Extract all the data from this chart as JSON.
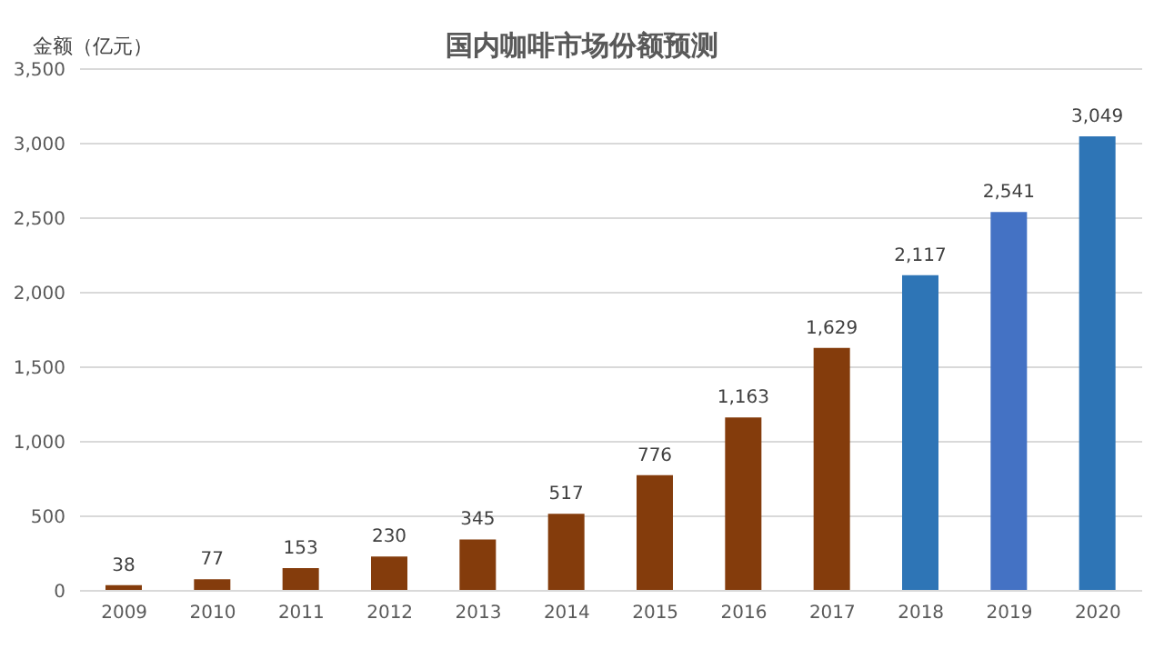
{
  "chart_data": {
    "type": "bar",
    "title": "国内咖啡市场份额预测",
    "ylabel": "金额（亿元）",
    "categories": [
      "2009",
      "2010",
      "2011",
      "2012",
      "2013",
      "2014",
      "2015",
      "2016",
      "2017",
      "2018",
      "2019",
      "2020"
    ],
    "values": [
      38,
      77,
      153,
      230,
      345,
      517,
      776,
      1163,
      1629,
      2117,
      2541,
      3049
    ],
    "colors": [
      "#843c0c",
      "#843c0c",
      "#843c0c",
      "#843c0c",
      "#843c0c",
      "#843c0c",
      "#843c0c",
      "#843c0c",
      "#843c0c",
      "#2e75b6",
      "#4472c4",
      "#2e75b6"
    ],
    "value_labels": [
      "38",
      "77",
      "153",
      "230",
      "345",
      "517",
      "776",
      "1,163",
      "1,629",
      "2,117",
      "2,541",
      "3,049"
    ],
    "ylim": [
      0,
      3500
    ],
    "yticks": [
      {
        "value": 0,
        "label": "0"
      },
      {
        "value": 500,
        "label": "500"
      },
      {
        "value": 1000,
        "label": "1,000"
      },
      {
        "value": 1500,
        "label": "1,500"
      },
      {
        "value": 2000,
        "label": "2,000"
      },
      {
        "value": 2500,
        "label": "2,500"
      },
      {
        "value": 3000,
        "label": "3,000"
      },
      {
        "value": 3500,
        "label": "3,500"
      }
    ],
    "grid": "y",
    "legend": false
  }
}
